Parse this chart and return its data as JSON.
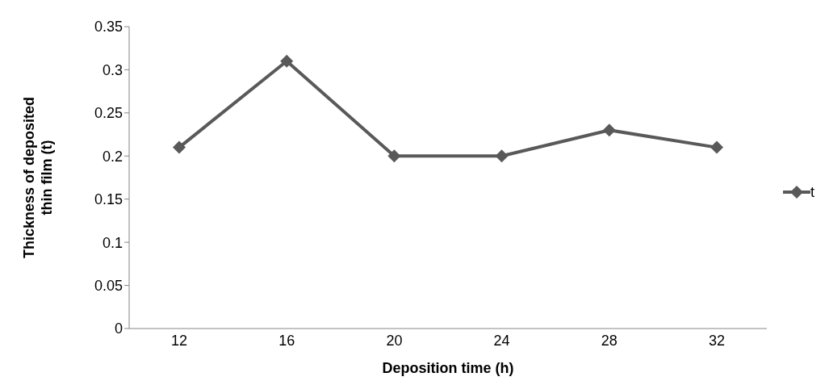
{
  "chart_data": {
    "type": "line",
    "xlabel": "Deposition time (h)",
    "ylabel": "Thickness of deposited thin film (t)",
    "categories": [
      "12",
      "16",
      "20",
      "24",
      "28",
      "32"
    ],
    "series": [
      {
        "name": "t",
        "color": "#595959",
        "values": [
          0.21,
          0.31,
          0.2,
          0.2,
          0.23,
          0.21
        ]
      }
    ],
    "ylim": [
      0,
      0.35
    ],
    "yticks": [
      0,
      0.05,
      0.1,
      0.15,
      0.2,
      0.25,
      0.3,
      0.35
    ],
    "grid": false,
    "legend": "right",
    "marker": "diamond",
    "line_style": "solid"
  }
}
